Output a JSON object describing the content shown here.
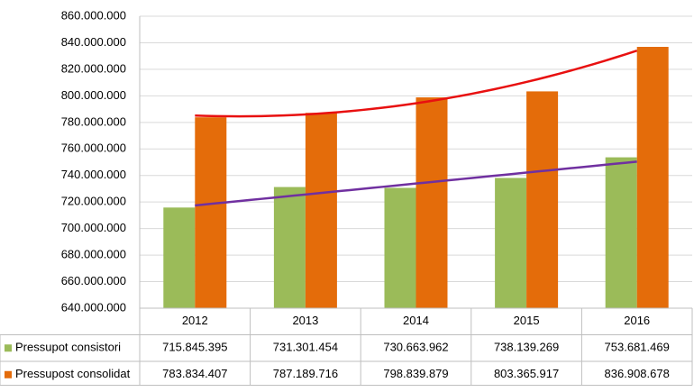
{
  "chart_data": {
    "type": "bar",
    "categories": [
      "2012",
      "2013",
      "2014",
      "2015",
      "2016"
    ],
    "series": [
      {
        "name": "Pressupot consistori",
        "color": "#9bbb59",
        "values": [
          715845395,
          731301454,
          730663962,
          738139269,
          753681469
        ],
        "value_labels": [
          "715.845.395",
          "731.301.454",
          "730.663.962",
          "738.139.269",
          "753.681.469"
        ],
        "trendline": "linear",
        "trend_color": "#7030a0"
      },
      {
        "name": "Pressupost consolidat",
        "color": "#e46c0a",
        "values": [
          783834407,
          787189716,
          798839879,
          803365917,
          836908678
        ],
        "value_labels": [
          "783.834.407",
          "787.189.716",
          "798.839.879",
          "803.365.917",
          "836.908.678"
        ],
        "trendline": "polynomial",
        "trend_color": "#e81010"
      }
    ],
    "ylim": [
      640000000,
      860000000
    ],
    "yticks": [
      {
        "value": 640000000,
        "label": "640.000.000"
      },
      {
        "value": 660000000,
        "label": "660.000.000"
      },
      {
        "value": 680000000,
        "label": "680.000.000"
      },
      {
        "value": 700000000,
        "label": "700.000.000"
      },
      {
        "value": 720000000,
        "label": "720.000.000"
      },
      {
        "value": 740000000,
        "label": "740.000.000"
      },
      {
        "value": 760000000,
        "label": "760.000.000"
      },
      {
        "value": 780000000,
        "label": "780.000.000"
      },
      {
        "value": 800000000,
        "label": "800.000.000"
      },
      {
        "value": 820000000,
        "label": "820.000.000"
      },
      {
        "value": 840000000,
        "label": "840.000.000"
      },
      {
        "value": 860000000,
        "label": "860.000.000"
      }
    ],
    "grid": true
  }
}
